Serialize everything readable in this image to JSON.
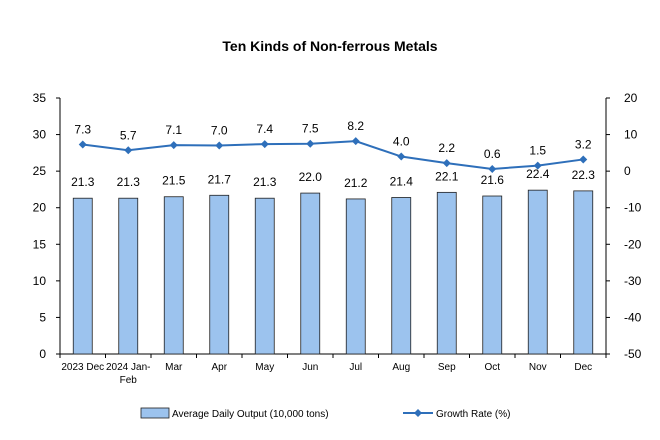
{
  "chart_data": {
    "type": "bar",
    "title": "Ten Kinds of Non-ferrous Metals",
    "categories": [
      [
        "2023 Dec"
      ],
      [
        "2024 Jan-",
        "Feb"
      ],
      [
        "Mar"
      ],
      [
        "Apr"
      ],
      [
        "May"
      ],
      [
        "Jun"
      ],
      [
        "Jul"
      ],
      [
        "Aug"
      ],
      [
        "Sep"
      ],
      [
        "Oct"
      ],
      [
        "Nov"
      ],
      [
        "Dec"
      ]
    ],
    "series": [
      {
        "name": "Average Daily Output (10,000 tons)",
        "type": "bar",
        "axis": "left",
        "values": [
          21.3,
          21.3,
          21.5,
          21.7,
          21.3,
          22.0,
          21.2,
          21.4,
          22.1,
          21.6,
          22.4,
          22.3
        ],
        "labels": [
          "21.3",
          "21.3",
          "21.5",
          "21.7",
          "21.3",
          "22.0",
          "21.2",
          "21.4",
          "22.1",
          "21.6",
          "22.4",
          "22.3"
        ]
      },
      {
        "name": "Growth Rate (%)",
        "type": "line",
        "axis": "right",
        "values": [
          7.3,
          5.7,
          7.1,
          7.0,
          7.4,
          7.5,
          8.2,
          4.0,
          2.2,
          0.6,
          1.5,
          3.2
        ],
        "labels": [
          "7.3",
          "5.7",
          "7.1",
          "7.0",
          "7.4",
          "7.5",
          "8.2",
          "4.0",
          "2.2",
          "0.6",
          "1.5",
          "3.2"
        ]
      }
    ],
    "y_left": {
      "min": 0,
      "max": 35,
      "ticks": [
        "0",
        "5",
        "10",
        "15",
        "20",
        "25",
        "30",
        "35"
      ]
    },
    "y_right": {
      "min": -50,
      "max": 20,
      "ticks": [
        "-50",
        "-40",
        "-30",
        "-20",
        "-10",
        "0",
        "10",
        "20"
      ]
    },
    "grid": false,
    "legend": "bottom",
    "colors": {
      "bar_fill": "#9cc3ee",
      "bar_stroke": "#1f1f1f",
      "line": "#2e6fba",
      "axis": "#000000"
    }
  }
}
